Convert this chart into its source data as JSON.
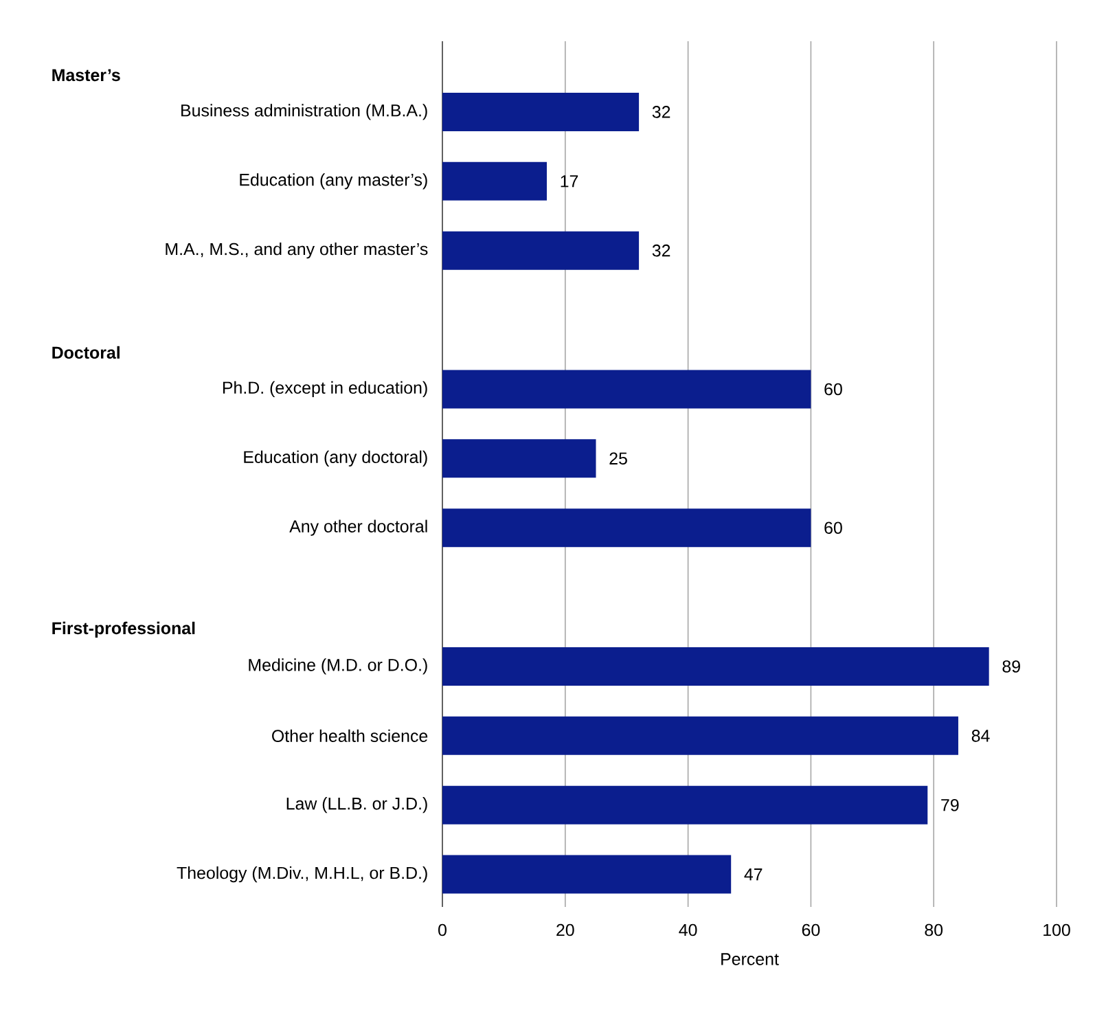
{
  "chart_data": {
    "type": "bar",
    "orientation": "horizontal",
    "xlabel": "Percent",
    "categories": [
      null,
      "Business administration (M.B.A.)",
      "Education (any master’s)",
      "M.A., M.S., and any other master’s",
      null,
      "Ph.D. (except in education)",
      "Education (any doctoral)",
      "Any other doctoral",
      null,
      "Medicine (M.D. or D.O.)",
      "Other health science",
      "Law (LL.B. or J.D.)",
      "Theology (M.Div., M.H.L, or B.D.)"
    ],
    "values": [
      null,
      32,
      17,
      32,
      null,
      60,
      25,
      60,
      null,
      89,
      84,
      79,
      47
    ],
    "annotations": [
      "Master’s",
      "Doctoral",
      "First-professional"
    ],
    "color": "#0b1e8e",
    "data_labels": true,
    "grid": "x",
    "xlim": [
      0,
      100
    ],
    "xticks": [
      0,
      20,
      40,
      60,
      80,
      100
    ]
  }
}
